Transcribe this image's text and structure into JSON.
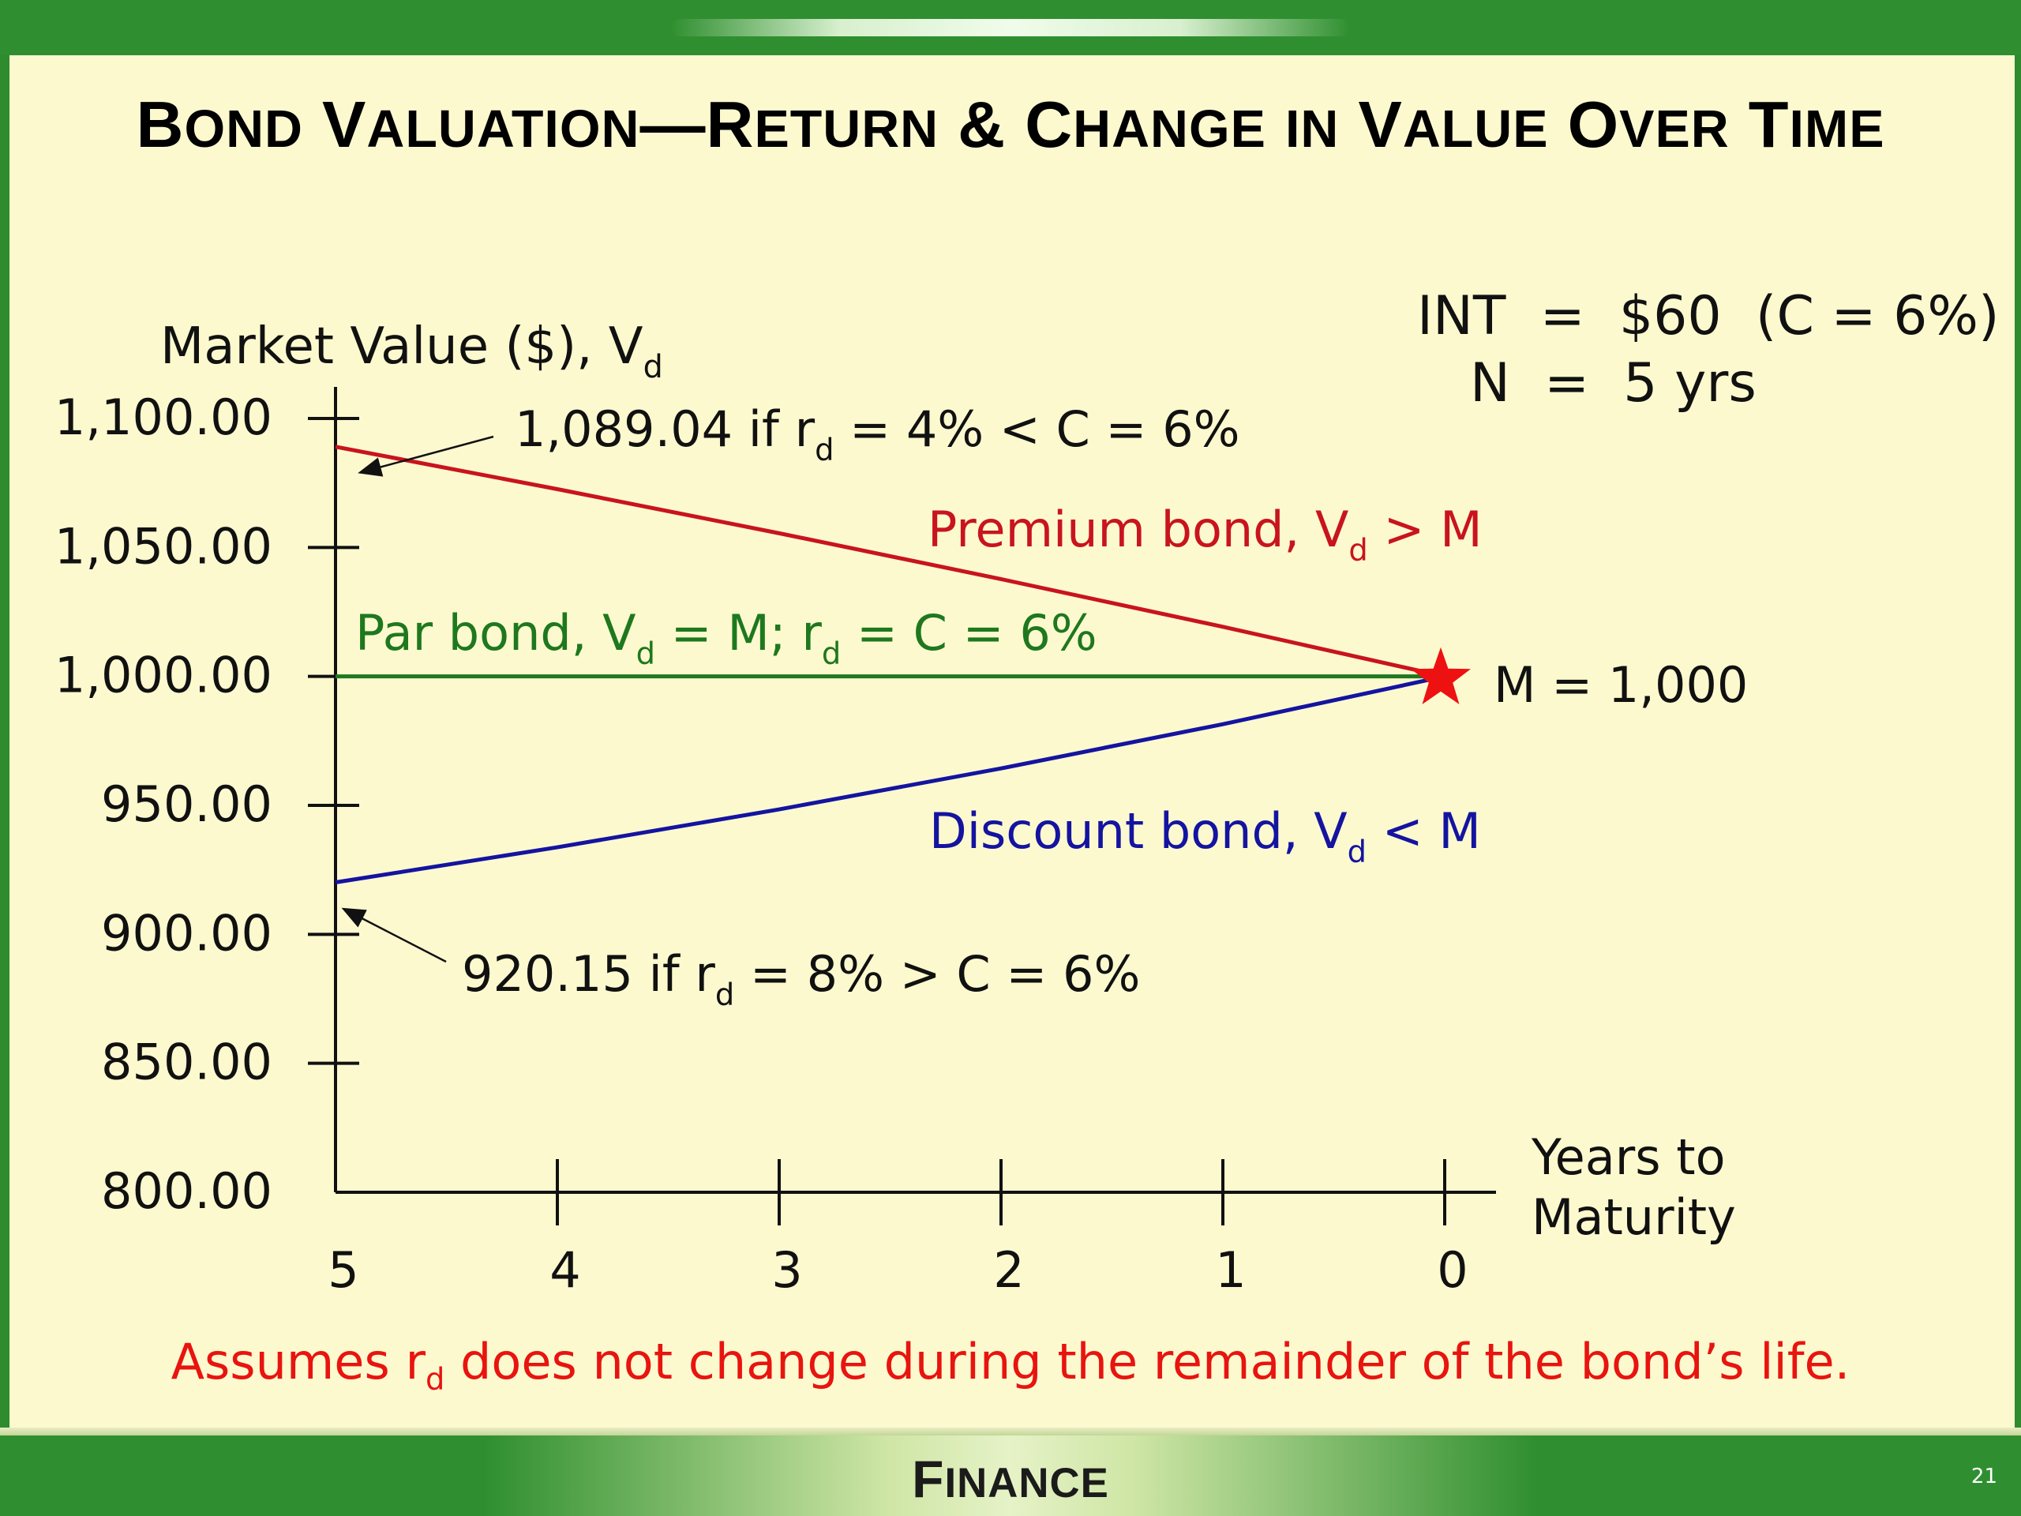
{
  "slide": {
    "title": "Bond Valuation—Return & Change in Value Over Time",
    "footer": "Finance",
    "page_number": "21",
    "note_pre": "Assumes r",
    "note_sub": "d",
    "note_post": " does not change during the remainder of the bond’s life."
  },
  "assumptions": {
    "int_line": "INT  =  $60  (C = 6%)",
    "n_line": "N  =  5 yrs"
  },
  "colors": {
    "premium": "#c8141e",
    "par": "#1e781e",
    "discount": "#1414a0",
    "star": "#ee1111",
    "note": "#e8140f"
  },
  "chart_data": {
    "type": "line",
    "title": "",
    "ylabel_pre": "Market Value ($), V",
    "ylabel_sub": "d",
    "xlabel_line1": "Years to",
    "xlabel_line2": "Maturity",
    "xlim": [
      5,
      0
    ],
    "ylim": [
      800,
      1100
    ],
    "x_ticks": [
      5,
      4,
      3,
      2,
      1,
      0
    ],
    "y_ticks": [
      800,
      850,
      900,
      950,
      1000,
      1050,
      1100
    ],
    "y_tick_labels": [
      "800.00",
      "850.00",
      "900.00",
      "950.00",
      "1,000.00",
      "1,050.00",
      "1,100.00"
    ],
    "series": [
      {
        "name": "Premium bond, V_d > M",
        "label_pre": "Premium bond, V",
        "label_sub": "d",
        "label_post": " > M",
        "color_key": "premium",
        "x": [
          5,
          4,
          3,
          2,
          1,
          0
        ],
        "y": [
          1089.04,
          1072.6,
          1055.5,
          1037.72,
          1019.23,
          1000.0
        ]
      },
      {
        "name": "Par bond, V_d = M; r_d = C = 6%",
        "label_pre": "Par bond, V",
        "label_sub": "d",
        "label_mid": " = M; r",
        "label_sub2": "d",
        "label_post": " = C = 6%",
        "color_key": "par",
        "x": [
          5,
          4,
          3,
          2,
          1,
          0
        ],
        "y": [
          1000,
          1000,
          1000,
          1000,
          1000,
          1000
        ]
      },
      {
        "name": "Discount bond, V_d < M",
        "label_pre": "Discount bond, V",
        "label_sub": "d",
        "label_post": " < M",
        "color_key": "discount",
        "x": [
          5,
          4,
          3,
          2,
          1,
          0
        ],
        "y": [
          920.15,
          933.76,
          948.46,
          964.33,
          981.48,
          1000.0
        ]
      }
    ],
    "annotations": {
      "high": {
        "pre": "1,089.04 if r",
        "sub": "d",
        "post": " = 4% < C = 6%",
        "value": 1089.04
      },
      "low": {
        "pre": "920.15 if r",
        "sub": "d",
        "post": " = 8% > C = 6%",
        "value": 920.15
      },
      "maturity": {
        "label": "M = 1,000",
        "value": 1000
      }
    }
  }
}
